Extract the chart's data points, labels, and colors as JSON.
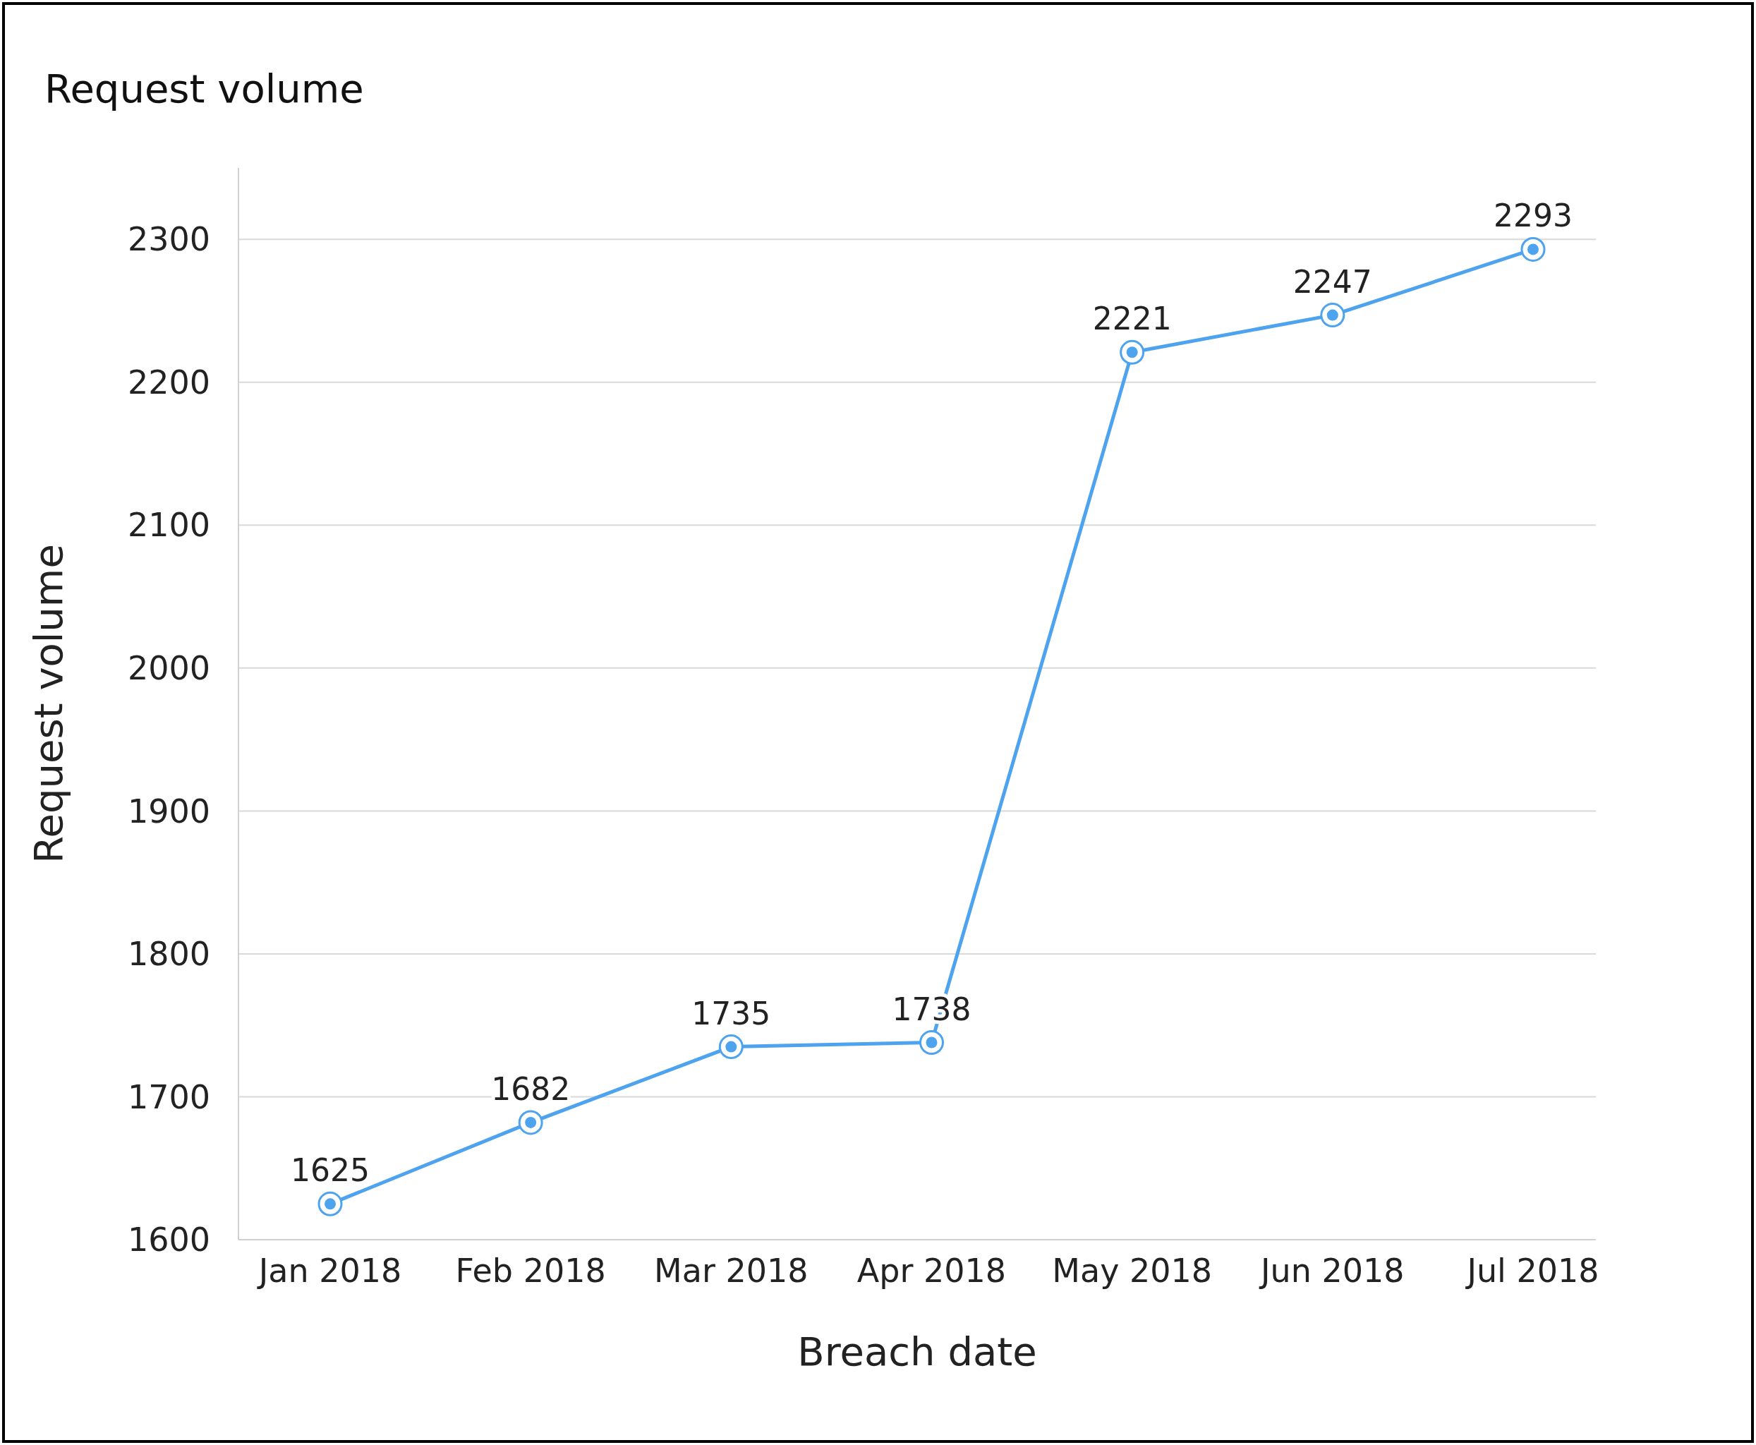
{
  "chart_data": {
    "type": "line",
    "title": "Request volume",
    "xlabel": "Breach date",
    "ylabel": "Request volume",
    "categories": [
      "Jan 2018",
      "Feb 2018",
      "Mar 2018",
      "Apr 2018",
      "May 2018",
      "Jun 2018",
      "Jul 2018"
    ],
    "series": [
      {
        "color": "#4ea3ef",
        "values": [
          1625,
          1682,
          1735,
          1738,
          2221,
          2247,
          2293
        ]
      }
    ],
    "ylim": [
      1600,
      2350
    ],
    "yticks": [
      1600,
      1700,
      1800,
      1900,
      2000,
      2100,
      2200,
      2300
    ],
    "grid": "y",
    "marker": "circle",
    "line_style": "solid",
    "data_labels": true
  }
}
